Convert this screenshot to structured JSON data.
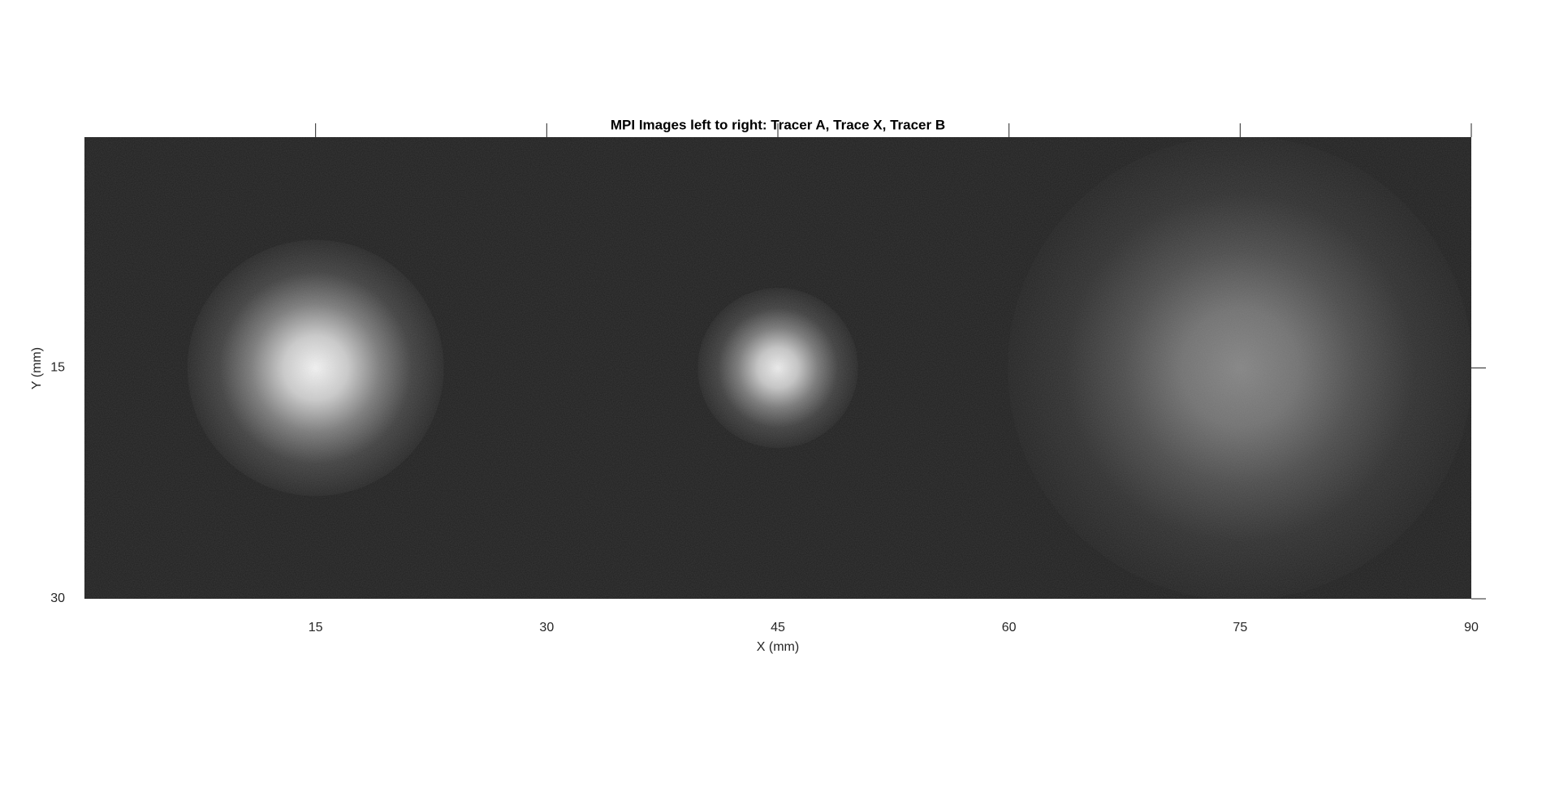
{
  "chart_data": {
    "type": "image",
    "title": "MPI Images left to right: Tracer A, Trace X, Tracer B",
    "xlabel": "X (mm)",
    "ylabel": "Y (mm)",
    "xlim": [
      0,
      90
    ],
    "xticks": [
      15,
      30,
      45,
      60,
      75,
      90
    ],
    "ylim": [
      0,
      30
    ],
    "yticks": [
      15,
      30
    ],
    "y_reversed": true,
    "background": "#1f1f1f",
    "spots": {
      "x": [
        15,
        45,
        75
      ],
      "y": [
        15,
        15,
        15
      ],
      "sigma": [
        3.2,
        2.0,
        5.8
      ],
      "peak": [
        0.95,
        0.92,
        0.45
      ]
    }
  }
}
